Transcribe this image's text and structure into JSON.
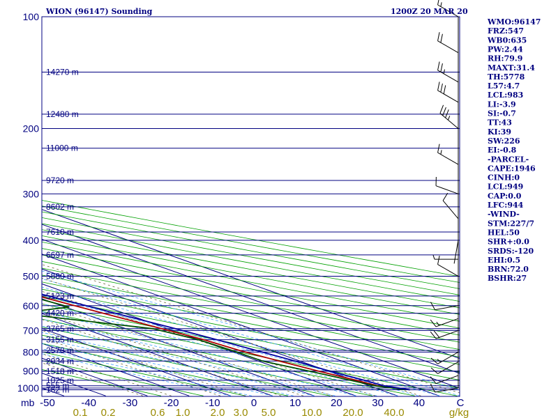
{
  "header": {
    "station": "WION (96147) Sounding",
    "time": "1200Z 20 MAR 20"
  },
  "chart_data": {
    "type": "line",
    "title": "WION (96147) Sounding",
    "subtitle": "1200Z 20 MAR 20",
    "xlabel": "",
    "ylabel": "",
    "pressure_labels": [
      "100",
      "200",
      "300",
      "400",
      "500",
      "600",
      "700",
      "800",
      "900",
      "1000"
    ],
    "pressure_axis_unit": "mb",
    "height_levels": [
      {
        "p": 141,
        "label": "14270 m"
      },
      {
        "p": 183,
        "label": "12480 m"
      },
      {
        "p": 226,
        "label": "11000 m"
      },
      {
        "p": 276,
        "label": "9720 m"
      },
      {
        "p": 325,
        "label": "8602 m"
      },
      {
        "p": 380,
        "label": "7610 m"
      },
      {
        "p": 438,
        "label": "6697 m"
      },
      {
        "p": 500,
        "label": "5880 m"
      },
      {
        "p": 565,
        "label": "5123 m"
      },
      {
        "p": 629,
        "label": "4420 m"
      },
      {
        "p": 692,
        "label": "3765 m"
      },
      {
        "p": 741,
        "label": "3155 m"
      },
      {
        "p": 792,
        "label": "2578 m"
      },
      {
        "p": 846,
        "label": "2034 m"
      },
      {
        "p": 901,
        "label": "1518 m"
      },
      {
        "p": 953,
        "label": "1025 m"
      },
      {
        "p": 986,
        "label": "555 m"
      },
      {
        "p": 1011,
        "label": "162 m"
      }
    ],
    "temperature_ticks": [
      "-50",
      "-40",
      "-30",
      "-20",
      "-10",
      "0",
      "10",
      "20",
      "30",
      "40",
      "C"
    ],
    "mixing_ratio_ticks": [
      "0.1",
      "0.2",
      "0.6",
      "1.0",
      "2.0",
      "3.0",
      "5.0",
      "10.0",
      "20.0",
      "40.0",
      "g/kg"
    ],
    "temperature_range": [
      -50,
      50
    ],
    "pressure_range": [
      100,
      1050
    ],
    "log_pressure_axis": true,
    "series": [
      {
        "name": "Temperature",
        "color": "#aa0000",
        "points": [
          {
            "p": 1011,
            "t": 27.0
          },
          {
            "p": 986,
            "t": 22.0
          },
          {
            "p": 953,
            "t": 20.6
          },
          {
            "p": 901,
            "t": 17.7
          },
          {
            "p": 846,
            "t": 15.0
          },
          {
            "p": 792,
            "t": 12.6
          },
          {
            "p": 741,
            "t": 11.3
          },
          {
            "p": 692,
            "t": 8.6
          },
          {
            "p": 629,
            "t": 5.0
          },
          {
            "p": 565,
            "t": 0.9
          },
          {
            "p": 500,
            "t": -4.7
          },
          {
            "p": 438,
            "t": -10.6
          },
          {
            "p": 380,
            "t": -16.5
          },
          {
            "p": 325,
            "t": -23.8
          },
          {
            "p": 276,
            "t": -32.0
          },
          {
            "p": 226,
            "t": -42.8
          },
          {
            "p": 183,
            "t": -53.5
          },
          {
            "p": 141,
            "t": -67.2
          },
          {
            "p": 125,
            "t": -71.0
          },
          {
            "p": 111,
            "t": -73.4
          }
        ]
      },
      {
        "name": "Dewpoint",
        "color": "#005000",
        "points": [
          {
            "p": 1011,
            "t": 26.0
          },
          {
            "p": 986,
            "t": 21.3
          },
          {
            "p": 953,
            "t": 19.2
          },
          {
            "p": 901,
            "t": 15.5
          },
          {
            "p": 846,
            "t": 11.0
          },
          {
            "p": 792,
            "t": 10.8
          },
          {
            "p": 741,
            "t": 10.0
          },
          {
            "p": 692,
            "t": 6.5
          },
          {
            "p": 629,
            "t": -15.5
          },
          {
            "p": 605,
            "t": 1.0
          },
          {
            "p": 565,
            "t": -1.3
          },
          {
            "p": 500,
            "t": -8.5
          },
          {
            "p": 438,
            "t": -14.0
          },
          {
            "p": 380,
            "t": -23.6
          },
          {
            "p": 325,
            "t": -31.5
          },
          {
            "p": 276,
            "t": -40.3
          },
          {
            "p": 226,
            "t": -52.2
          },
          {
            "p": 183,
            "t": -63.5
          },
          {
            "p": 141,
            "t": -77.5
          },
          {
            "p": 125,
            "t": -81.5
          },
          {
            "p": 111,
            "t": -84.0
          }
        ]
      },
      {
        "name": "Parcel",
        "color": "#0000a0",
        "points": [
          {
            "p": 1011,
            "t": 27.0
          },
          {
            "p": 986,
            "t": 23.5
          },
          {
            "p": 953,
            "t": 22.5
          },
          {
            "p": 901,
            "t": 20.4
          },
          {
            "p": 846,
            "t": 18.8
          },
          {
            "p": 792,
            "t": 16.6
          },
          {
            "p": 741,
            "t": 14.4
          },
          {
            "p": 692,
            "t": 11.9
          },
          {
            "p": 629,
            "t": 7.9
          },
          {
            "p": 565,
            "t": 3.4
          },
          {
            "p": 500,
            "t": -2.0
          },
          {
            "p": 438,
            "t": -7.9
          },
          {
            "p": 380,
            "t": -14.6
          },
          {
            "p": 325,
            "t": -22.0
          },
          {
            "p": 276,
            "t": -30.4
          },
          {
            "p": 226,
            "t": -41.5
          },
          {
            "p": 183,
            "t": -53.4
          },
          {
            "p": 141,
            "t": -67.7
          },
          {
            "p": 125,
            "t": -75.0
          },
          {
            "p": 106,
            "t": -83.0
          }
        ]
      }
    ],
    "wind_barbs": [
      {
        "p": 1000,
        "dir": 260,
        "speed": 10
      },
      {
        "p": 925,
        "dir": 250,
        "speed": 10
      },
      {
        "p": 850,
        "dir": 240,
        "speed": 10
      },
      {
        "p": 800,
        "dir": 240,
        "speed": 15
      },
      {
        "p": 700,
        "dir": 250,
        "speed": 20
      },
      {
        "p": 650,
        "dir": 250,
        "speed": 15
      },
      {
        "p": 600,
        "dir": 260,
        "speed": 10
      },
      {
        "p": 500,
        "dir": 300,
        "speed": 10
      },
      {
        "p": 450,
        "dir": 270,
        "speed": 5
      },
      {
        "p": 400,
        "dir": 190,
        "speed": 0
      },
      {
        "p": 350,
        "dir": 320,
        "speed": 10
      },
      {
        "p": 300,
        "dir": 290,
        "speed": 10
      },
      {
        "p": 250,
        "dir": 300,
        "speed": 15
      },
      {
        "p": 200,
        "dir": 310,
        "speed": 35
      },
      {
        "p": 170,
        "dir": 300,
        "speed": 30
      },
      {
        "p": 150,
        "dir": 300,
        "speed": 25
      },
      {
        "p": 125,
        "dir": 300,
        "speed": 20
      },
      {
        "p": 100,
        "dir": 300,
        "speed": 15
      }
    ]
  },
  "indices": [
    "WMO:96147",
    "FRZ:547",
    "WB0:635",
    "PW:2.44",
    "RH:79.9",
    "MAXT:31.4",
    "TH:5778",
    "L57:4.7",
    "LCL:983",
    "LI:-3.9",
    "SI:-0.7",
    "TT:43",
    "KI:39",
    "SW:226",
    "EI:-0.8",
    "-PARCEL-",
    "CAPE:1946",
    "CINH:0",
    "LCL:949",
    "CAP:0.0",
    "LFC:944",
    "-WIND-",
    "STM:227/7",
    "HEL:50",
    "SHR+:0.0",
    "SRDS:-120",
    "EHI:0.5",
    "BRN:72.0",
    "BSHR:27"
  ],
  "colors": {
    "frame": "#000080",
    "isobar": "#000080",
    "isotherm": "#000080",
    "dry_adiabat": "#00a000",
    "moist_adiabat": "#40a0ff",
    "mixing_ratio": "#6a6a3a",
    "wind": "#000000",
    "mixing_label": "#998a00"
  }
}
